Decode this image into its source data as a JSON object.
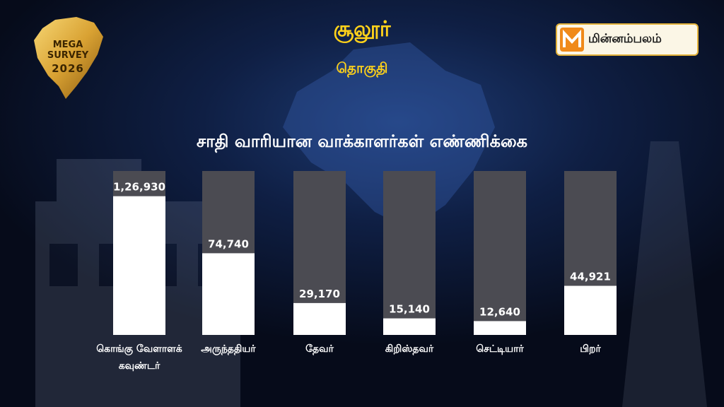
{
  "header": {
    "title": "சூலூர்",
    "subtitle": "தொகுதி",
    "logo_text": "மின்னம்பலம்",
    "badge_line1": "MEGA SURVEY",
    "badge_line2": "2026"
  },
  "chart_data": {
    "type": "bar",
    "title": "சாதி வாரியான வாக்காளர்கள்  எண்ணிக்கை",
    "categories": [
      [
        "கொங்கு வேளாளக்",
        "கவுண்டர்"
      ],
      [
        "அருந்ததியர்"
      ],
      [
        "தேவர்"
      ],
      [
        "கிறிஸ்தவர்"
      ],
      [
        "செட்டியார்"
      ],
      [
        "பிறர்"
      ]
    ],
    "values": [
      126930,
      74740,
      29170,
      15140,
      12640,
      44921
    ],
    "data_labels": [
      "1,26,930",
      "74,740",
      "29,170",
      "15,140",
      "12,640",
      "44,921"
    ],
    "ylim": [
      0,
      150000
    ],
    "colors": {
      "bar": "#ffffff",
      "track": "#4b4b52",
      "label": "#ffffff",
      "title": "#ffd21a"
    }
  }
}
